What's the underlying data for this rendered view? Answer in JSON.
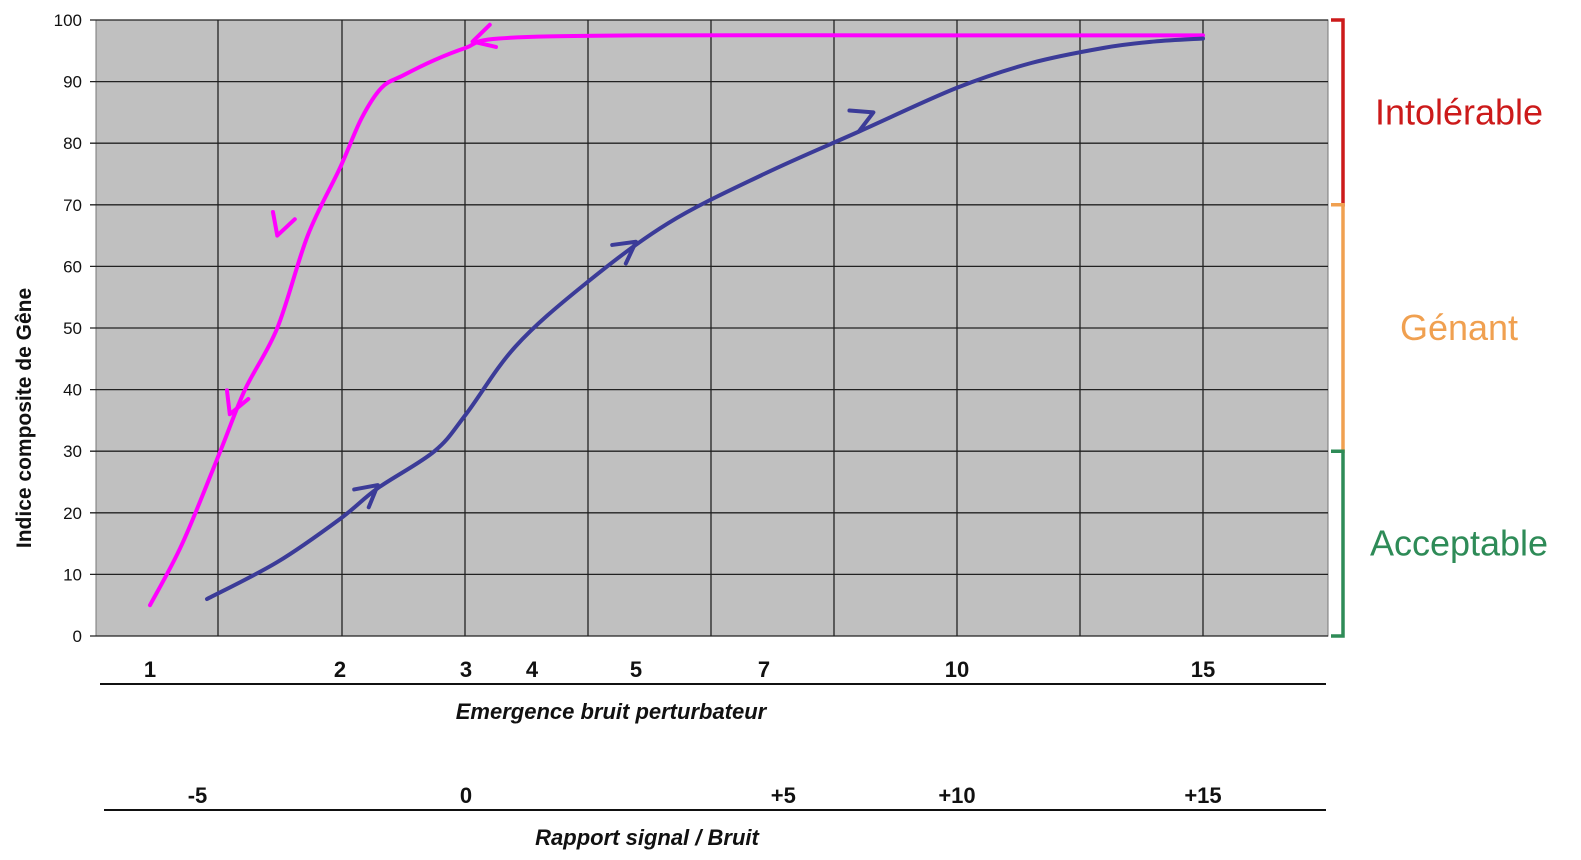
{
  "chart_data": {
    "type": "line",
    "title": "",
    "ylabel": "Indice composite de Gêne",
    "ylim": [
      0,
      100
    ],
    "y_ticks": [
      "0",
      "10",
      "20",
      "30",
      "40",
      "50",
      "60",
      "70",
      "80",
      "90",
      "100"
    ],
    "grid": true,
    "x_axis_primary": {
      "label": "Emergence bruit perturbateur",
      "ticks": [
        {
          "label": "1",
          "x": 1
        },
        {
          "label": "2",
          "x": 2
        },
        {
          "label": "3",
          "x": 3
        },
        {
          "label": "4",
          "x": 4
        },
        {
          "label": "5",
          "x": 5
        },
        {
          "label": "7",
          "x": 7
        },
        {
          "label": "10",
          "x": 10
        },
        {
          "label": "15",
          "x": 15
        }
      ]
    },
    "x_axis_secondary": {
      "label": "Rapport signal / Bruit",
      "ticks": [
        {
          "label": "-5",
          "x": 1.25
        },
        {
          "label": "0",
          "x": 3.0
        },
        {
          "label": "+5",
          "x": 7.3
        },
        {
          "label": "+10",
          "x": 10
        },
        {
          "label": "+15",
          "x": 15
        }
      ]
    },
    "series": [
      {
        "color": "#ff00ff",
        "direction": "decreasing",
        "x": [
          1.0,
          1.17,
          1.37,
          1.5,
          1.67,
          1.83,
          2.0,
          2.17,
          2.33,
          2.5,
          2.75,
          3.0,
          3.5,
          5.0,
          10.0,
          15.0
        ],
        "y": [
          5,
          15,
          30,
          40,
          50,
          65,
          76,
          84,
          89,
          91,
          93.5,
          95.5,
          97,
          97.5,
          97.5,
          97.5
        ],
        "arrows_at": [
          {
            "x": 1.67,
            "y": 65
          },
          {
            "x": 1.42,
            "y": 36
          },
          {
            "x": 3.1,
            "y": 96.5
          }
        ]
      },
      {
        "color": "#3b3b98",
        "direction": "increasing",
        "x": [
          1.3,
          1.67,
          2.0,
          2.3,
          2.75,
          3.0,
          3.75,
          4.5,
          5.5,
          7.0,
          8.5,
          10.0,
          11.5,
          13.0,
          14.0,
          15.0
        ],
        "y": [
          6,
          12,
          19,
          24,
          30,
          36,
          47,
          57,
          67,
          75,
          82,
          89,
          93,
          95.5,
          96.5,
          97
        ],
        "arrows_at": [
          {
            "x": 2.3,
            "y": 24.5
          },
          {
            "x": 5.0,
            "y": 64
          },
          {
            "x": 8.7,
            "y": 85
          }
        ]
      }
    ],
    "zones": [
      {
        "label": "Intolérable",
        "y_from": 70,
        "y_to": 100,
        "color": "#cc1a1a"
      },
      {
        "label": "Génant",
        "y_from": 30,
        "y_to": 70,
        "color": "#f0a050"
      },
      {
        "label": "Acceptable",
        "y_from": 0,
        "y_to": 30,
        "color": "#2e8b57"
      }
    ]
  }
}
